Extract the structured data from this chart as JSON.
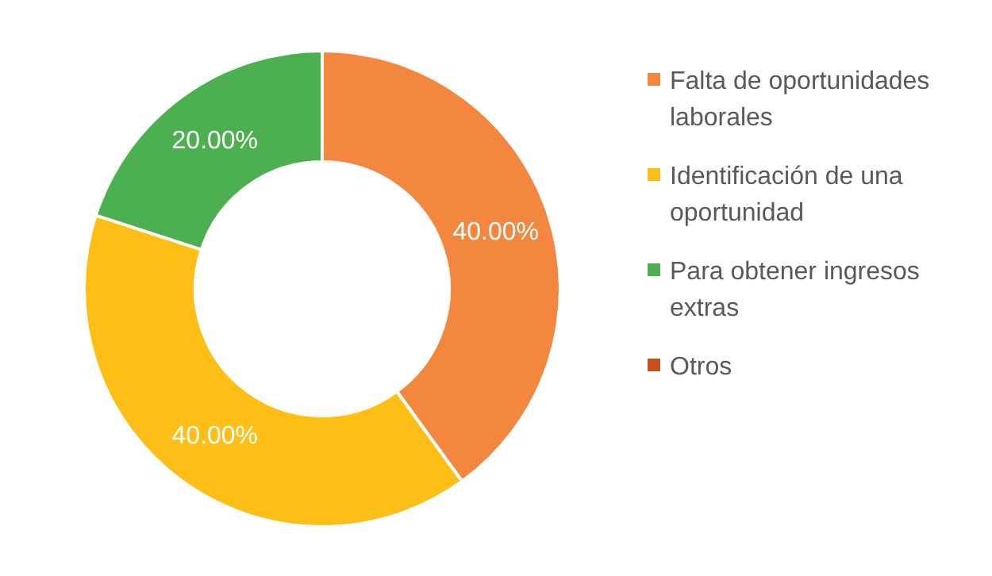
{
  "chart_data": {
    "type": "donut",
    "categories": [
      "Falta de oportunidades laborales",
      "Identificación de una oportunidad",
      "Para obtener ingresos extras",
      "Otros"
    ],
    "values": [
      40,
      40,
      20,
      0
    ],
    "colors": [
      "#f4873f",
      "#fdbf15",
      "#4caf50",
      "#c5501d"
    ],
    "value_labels": [
      "40.00%",
      "40.00%",
      "20.00%",
      null
    ],
    "legend": "right"
  }
}
